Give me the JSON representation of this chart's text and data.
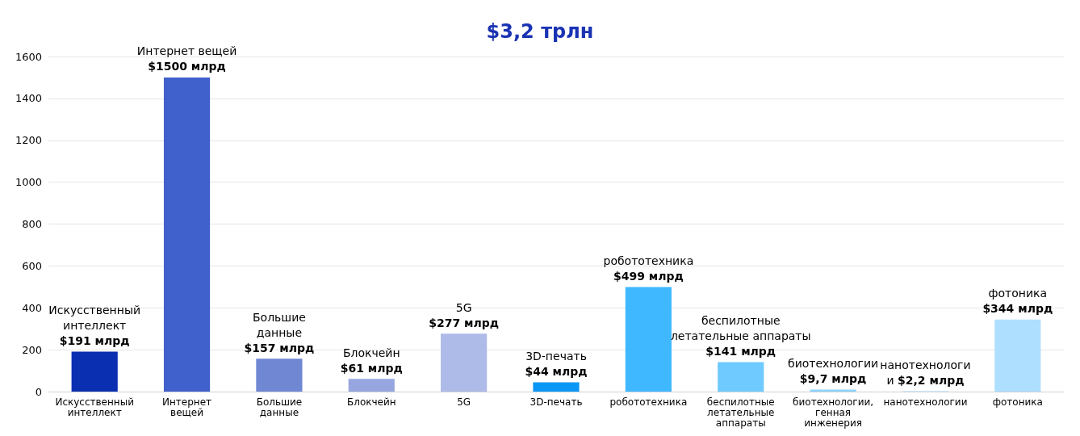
{
  "chart_data": {
    "type": "bar",
    "title": "$3,2 трлн",
    "categories": [
      "Искусственный интеллект",
      "Интернет вещей",
      "Большие данные",
      "Блокчейн",
      "5G",
      "3D-печать",
      "робототехника",
      "беспилотные летательные аппараты",
      "биотехнологии, генная инженерия",
      "нанотехнологии",
      "фотоника"
    ],
    "values": [
      191,
      1500,
      157,
      61,
      277,
      44,
      499,
      141,
      9.7,
      2.2,
      344
    ],
    "colors": [
      "#0a2fb0",
      "#4060cc",
      "#7088d4",
      "#97a6de",
      "#aebbe9",
      "#0a96f5",
      "#3fb8ff",
      "#6fcaff",
      "#8fd4ff",
      "#9fdaff",
      "#aedfff"
    ],
    "value_labels": [
      "Искусственный\nинтеллект\n$191 млрд",
      "Интернет вещей\n$1500 млрд",
      "Большие\nданные\n$157 млрд",
      "Блокчейн\n$61 млрд",
      "5G\n$277 млрд",
      "3D-печать\n$44 млрд",
      "робототехника\n$499 млрд",
      "беспилотные\nлетательные аппараты\n$141 млрд",
      "биотехнологии\n$9,7 млрд",
      "нанотехнологи\nи $2,2 млрд",
      "фотоника\n$344 млрд"
    ],
    "ylim": [
      0,
      1600
    ],
    "yticks": [
      0,
      200,
      400,
      600,
      800,
      1000,
      1200,
      1400,
      1600
    ],
    "grid": "y"
  }
}
